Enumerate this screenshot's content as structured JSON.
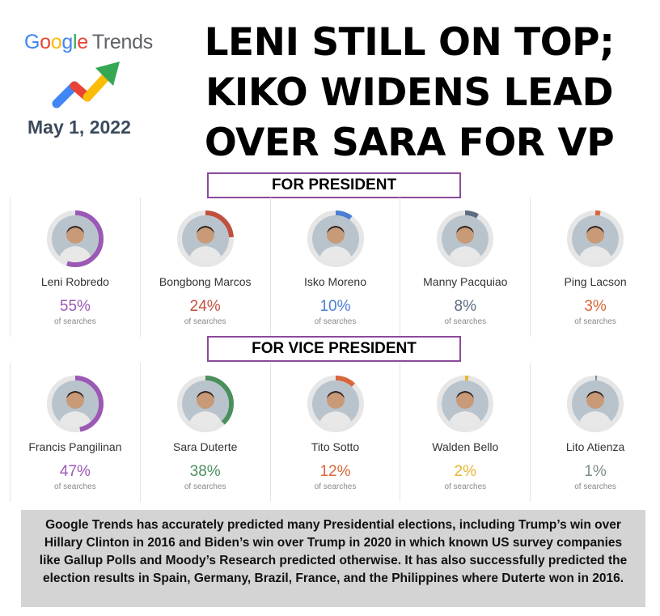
{
  "logo": {
    "letters": [
      "G",
      "o",
      "o",
      "g",
      "l",
      "e"
    ],
    "word": "Trends",
    "colors": [
      "#4285f4",
      "#ea4335",
      "#fbbc05",
      "#4285f4",
      "#34a853",
      "#ea4335"
    ]
  },
  "date": "May 1, 2022",
  "headline": "LENI STILL ON TOP;\nKIKO WIDENS LEAD\nOVER SARA FOR VP",
  "sections": {
    "president": "FOR PRESIDENT",
    "vice_president": "FOR VICE PRESIDENT"
  },
  "sub_label": "of searches",
  "chart_data": [
    {
      "type": "table",
      "title": "FOR PRESIDENT",
      "categories": [
        "Leni Robredo",
        "Bongbong Marcos",
        "Isko Moreno",
        "Manny Pacquiao",
        "Ping Lacson"
      ],
      "values": [
        55,
        24,
        10,
        8,
        3
      ],
      "unit": "%",
      "colors": [
        "#9b59b6",
        "#c0503f",
        "#4a7fd4",
        "#5d6d7e",
        "#d9663a"
      ]
    },
    {
      "type": "table",
      "title": "FOR VICE PRESIDENT",
      "categories": [
        "Francis Pangilinan",
        "Sara Duterte",
        "Tito Sotto",
        "Walden Bello",
        "Lito Atienza"
      ],
      "values": [
        47,
        38,
        12,
        2,
        1
      ],
      "unit": "%",
      "colors": [
        "#9b59b6",
        "#4a8f5c",
        "#d9663a",
        "#e5b62e",
        "#7f8c8d"
      ]
    }
  ],
  "footer": "Google Trends has accurately predicted many Presidential elections, including Trump’s win over Hillary Clinton in 2016 and Biden’s win over Trump in 2020 in which known US survey companies like Gallup Polls and Moody’s Research predicted otherwise. It has also successfully predicted the election results in Spain, Germany, Brazil, France, and the Philippines where Duterte won in 2016."
}
